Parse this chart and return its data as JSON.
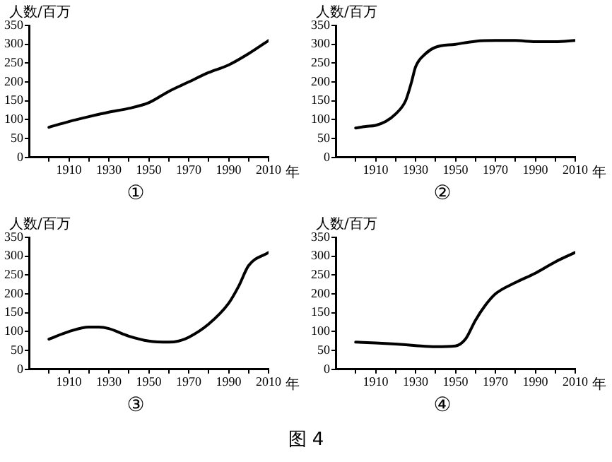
{
  "chart_data": [
    {
      "type": "line",
      "title": "①",
      "xlabel": "年",
      "ylabel": "人数/百万",
      "color": "#000000",
      "grid": false,
      "legend": false,
      "marker": "none",
      "xlim": [
        1890,
        2010
      ],
      "ylim": [
        0,
        350
      ],
      "xticks": [
        {
          "value": 1900,
          "label": null
        },
        1910,
        {
          "value": 1920,
          "label": null
        },
        1930,
        {
          "value": 1940,
          "label": null
        },
        1950,
        {
          "value": 1960,
          "label": null
        },
        1970,
        {
          "value": 1980,
          "label": null
        },
        1990,
        {
          "value": 2000,
          "label": null
        },
        2010
      ],
      "yticks": [
        0,
        50,
        100,
        150,
        200,
        250,
        300,
        350
      ],
      "x": [
        1900,
        1910,
        1920,
        1930,
        1940,
        1950,
        1960,
        1970,
        1980,
        1990,
        2000,
        2010
      ],
      "values": [
        80,
        95,
        108,
        120,
        130,
        145,
        175,
        200,
        225,
        245,
        275,
        310
      ]
    },
    {
      "type": "line",
      "title": "②",
      "xlabel": "年",
      "ylabel": "人数/百万",
      "color": "#000000",
      "grid": false,
      "legend": false,
      "marker": "none",
      "xlim": [
        1890,
        2010
      ],
      "ylim": [
        0,
        350
      ],
      "xticks": [
        {
          "value": 1900,
          "label": null
        },
        1910,
        {
          "value": 1920,
          "label": null
        },
        1930,
        {
          "value": 1940,
          "label": null
        },
        1950,
        {
          "value": 1960,
          "label": null
        },
        1970,
        {
          "value": 1980,
          "label": null
        },
        1990,
        {
          "value": 2000,
          "label": null
        },
        2010
      ],
      "yticks": [
        0,
        50,
        100,
        150,
        200,
        250,
        300,
        350
      ],
      "x": [
        1900,
        1905,
        1910,
        1915,
        1920,
        1925,
        1928,
        1930,
        1935,
        1940,
        1950,
        1960,
        1970,
        1980,
        1990,
        2000,
        2010
      ],
      "values": [
        78,
        82,
        85,
        95,
        115,
        150,
        200,
        240,
        275,
        292,
        300,
        308,
        310,
        310,
        307,
        307,
        310
      ]
    },
    {
      "type": "line",
      "title": "③",
      "xlabel": "年",
      "ylabel": "人数/百万",
      "color": "#000000",
      "grid": false,
      "legend": false,
      "marker": "none",
      "xlim": [
        1890,
        2010
      ],
      "ylim": [
        0,
        350
      ],
      "xticks": [
        {
          "value": 1900,
          "label": null
        },
        1910,
        {
          "value": 1920,
          "label": null
        },
        1930,
        {
          "value": 1940,
          "label": null
        },
        1950,
        {
          "value": 1960,
          "label": null
        },
        1970,
        {
          "value": 1980,
          "label": null
        },
        1990,
        {
          "value": 2000,
          "label": null
        },
        2010
      ],
      "yticks": [
        0,
        50,
        100,
        150,
        200,
        250,
        300,
        350
      ],
      "x": [
        1900,
        1910,
        1920,
        1925,
        1930,
        1940,
        1950,
        1960,
        1965,
        1970,
        1980,
        1990,
        1995,
        2000,
        2010
      ],
      "values": [
        80,
        100,
        112,
        112,
        108,
        88,
        75,
        72,
        75,
        85,
        120,
        175,
        220,
        275,
        310
      ]
    },
    {
      "type": "line",
      "title": "④",
      "xlabel": "年",
      "ylabel": "人数/百万",
      "color": "#000000",
      "grid": false,
      "legend": false,
      "marker": "none",
      "xlim": [
        1890,
        2010
      ],
      "ylim": [
        0,
        350
      ],
      "xticks": [
        {
          "value": 1900,
          "label": null
        },
        1910,
        {
          "value": 1920,
          "label": null
        },
        1930,
        {
          "value": 1940,
          "label": null
        },
        1950,
        {
          "value": 1960,
          "label": null
        },
        1970,
        {
          "value": 1980,
          "label": null
        },
        1990,
        {
          "value": 2000,
          "label": null
        },
        2010
      ],
      "yticks": [
        0,
        50,
        100,
        150,
        200,
        250,
        300,
        350
      ],
      "x": [
        1900,
        1910,
        1920,
        1930,
        1940,
        1950,
        1955,
        1960,
        1965,
        1970,
        1980,
        1990,
        2000,
        2010
      ],
      "values": [
        72,
        70,
        67,
        63,
        60,
        62,
        80,
        130,
        170,
        200,
        230,
        255,
        285,
        310
      ],
      "annotations": [
        "图 4"
      ]
    }
  ]
}
